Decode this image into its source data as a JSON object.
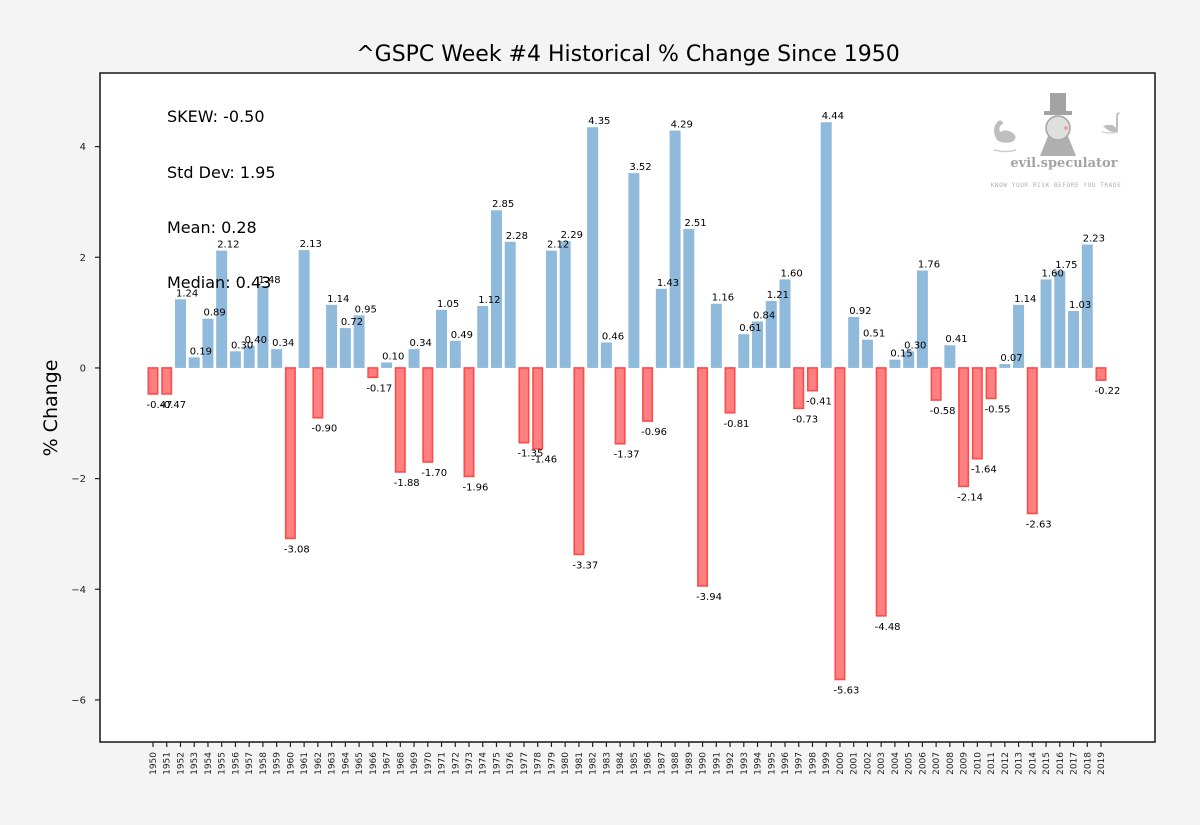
{
  "chart_data": {
    "type": "bar",
    "title": "^GSPC Week #4 Historical % Change Since 1950",
    "xlabel": "",
    "ylabel": "% Change",
    "ylim": [
      -6.76,
      5.33
    ],
    "yticks": [
      4,
      2,
      0,
      -2,
      -4,
      -6
    ],
    "ytick_labels": [
      "4",
      "2",
      "0",
      "−2",
      "−4",
      "−6"
    ],
    "grid": false,
    "categories": [
      "1950",
      "1951",
      "1952",
      "1953",
      "1954",
      "1955",
      "1956",
      "1957",
      "1958",
      "1959",
      "1960",
      "1961",
      "1962",
      "1963",
      "1964",
      "1965",
      "1966",
      "1967",
      "1968",
      "1969",
      "1970",
      "1971",
      "1972",
      "1973",
      "1974",
      "1975",
      "1976",
      "1977",
      "1978",
      "1979",
      "1980",
      "1981",
      "1982",
      "1983",
      "1984",
      "1985",
      "1986",
      "1987",
      "1988",
      "1989",
      "1990",
      "1991",
      "1992",
      "1993",
      "1994",
      "1995",
      "1996",
      "1997",
      "1998",
      "1999",
      "2000",
      "2001",
      "2002",
      "2003",
      "2004",
      "2005",
      "2006",
      "2007",
      "2008",
      "2009",
      "2010",
      "2011",
      "2012",
      "2013",
      "2014",
      "2015",
      "2016",
      "2017",
      "2018",
      "2019"
    ],
    "values": [
      -0.47,
      -0.47,
      1.24,
      0.19,
      0.89,
      2.12,
      0.3,
      0.4,
      1.48,
      0.34,
      -3.08,
      2.13,
      -0.9,
      1.14,
      0.72,
      0.95,
      -0.17,
      0.1,
      -1.88,
      0.34,
      -1.7,
      1.05,
      0.49,
      -1.96,
      1.12,
      2.85,
      2.28,
      -1.35,
      -1.46,
      2.12,
      2.29,
      -3.37,
      4.35,
      0.46,
      -1.37,
      3.52,
      -0.96,
      1.43,
      4.29,
      2.51,
      -3.94,
      1.16,
      -0.81,
      0.61,
      0.84,
      1.21,
      1.6,
      -0.73,
      -0.41,
      4.44,
      -5.63,
      0.92,
      0.51,
      -4.48,
      0.15,
      0.3,
      1.76,
      -0.58,
      0.41,
      -2.14,
      -1.64,
      -0.55,
      0.07,
      1.14,
      -2.63,
      1.6,
      1.75,
      1.03,
      2.23,
      -0.22
    ],
    "colors": {
      "positive_fill": "#8fbadb",
      "negative_fill": "#ff8080",
      "negative_edge": "#ff4a4a"
    },
    "annotations": {
      "skew": "SKEW: -0.50",
      "std_dev": "Std Dev: 1.95",
      "mean": "Mean: 0.28",
      "median": "Median: 0.43"
    },
    "watermark": {
      "brand": "evil.speculator",
      "tagline": "KNOW YOUR RISK BEFORE YOU TRADE"
    }
  }
}
